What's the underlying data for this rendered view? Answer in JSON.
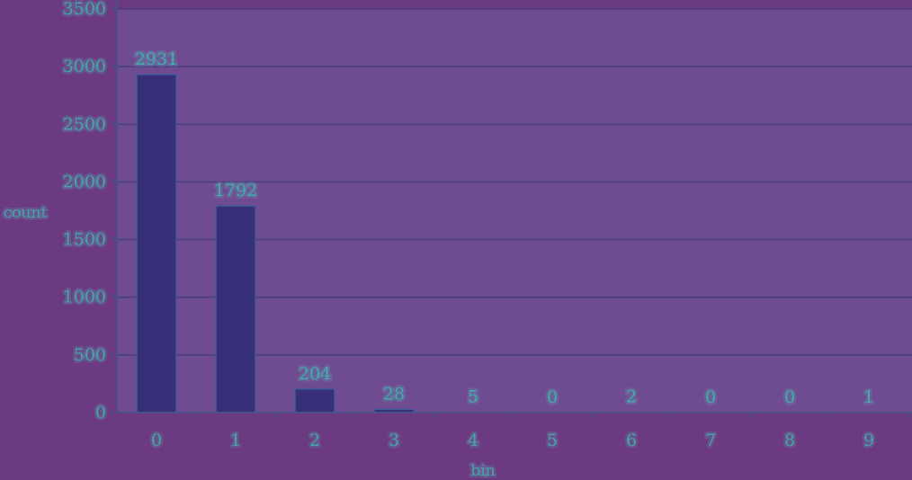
{
  "chart_data": {
    "type": "bar",
    "categories": [
      "0",
      "1",
      "2",
      "3",
      "4",
      "5",
      "6",
      "7",
      "8",
      "9"
    ],
    "values": [
      2931,
      1792,
      204,
      28,
      5,
      0,
      2,
      0,
      0,
      1
    ],
    "data_labels": [
      "2931",
      "1792",
      "204",
      "28",
      "5",
      "0",
      "2",
      "0",
      "0",
      "1"
    ],
    "xlabel": "bin",
    "ylabel": "count",
    "ylim": [
      0,
      3500
    ],
    "yticks": [
      0,
      500,
      1000,
      1500,
      2000,
      2500,
      3000,
      3500
    ],
    "grid": true,
    "legend": "none",
    "colors": {
      "background": "#6b3a80",
      "plot_background": "#6f4c92",
      "bar": "#372f78",
      "text": "#46a6a6",
      "grid": "#48407a"
    }
  }
}
